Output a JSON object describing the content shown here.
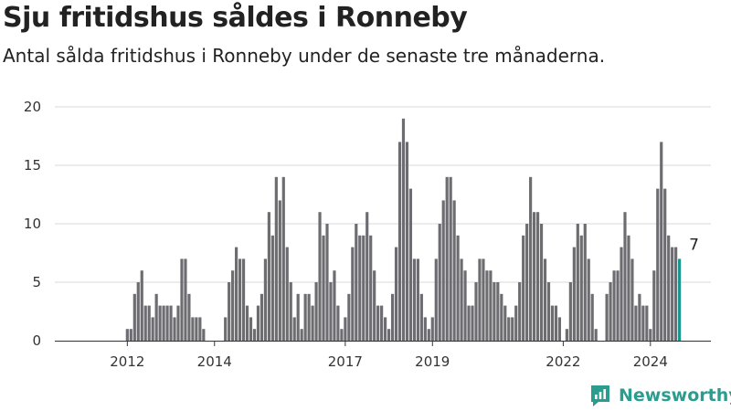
{
  "header": {
    "title": "Sju fritidshus såldes i Ronneby",
    "subtitle": "Antal sålda fritidshus i Ronneby under de senaste tre månaderna."
  },
  "brand": {
    "name": "Newsworthy",
    "logo": "newsworthy-chart-icon",
    "color": "#2a9d8f"
  },
  "colors": {
    "bar": "#6d6c71",
    "highlight": "#1a968f",
    "grid": "#d9d9d9"
  },
  "chart_data": {
    "type": "bar",
    "title": "Sju fritidshus såldes i Ronneby",
    "subtitle": "Antal sålda fritidshus i Ronneby under de senaste tre månaderna.",
    "xlabel": "",
    "ylabel": "",
    "ylim": [
      0,
      20
    ],
    "yticks": [
      0,
      5,
      10,
      15,
      20
    ],
    "xticks": [
      {
        "label": "2012",
        "year": 2012
      },
      {
        "label": "2014",
        "year": 2014
      },
      {
        "label": "2017",
        "year": 2017
      },
      {
        "label": "2019",
        "year": 2019
      },
      {
        "label": "2022",
        "year": 2022
      },
      {
        "label": "2024",
        "year": 2024
      }
    ],
    "grid": true,
    "legend": "none",
    "start": "2011-03",
    "end": "2025-01",
    "annotation": {
      "label": "7",
      "value": 7,
      "month": "2025-01"
    },
    "values": [
      0,
      0,
      0,
      0,
      0,
      0,
      0,
      0,
      0,
      0,
      1,
      1,
      4,
      5,
      6,
      3,
      3,
      2,
      4,
      3,
      3,
      3,
      3,
      2,
      3,
      7,
      7,
      4,
      2,
      2,
      2,
      1,
      0,
      0,
      0,
      0,
      0,
      2,
      5,
      6,
      8,
      7,
      7,
      3,
      2,
      1,
      3,
      4,
      7,
      11,
      9,
      14,
      12,
      14,
      8,
      5,
      2,
      4,
      1,
      4,
      4,
      3,
      5,
      11,
      9,
      10,
      5,
      6,
      3,
      1,
      2,
      4,
      8,
      10,
      9,
      9,
      11,
      9,
      6,
      3,
      3,
      2,
      1,
      4,
      8,
      17,
      19,
      17,
      13,
      7,
      7,
      4,
      2,
      1,
      2,
      7,
      10,
      12,
      14,
      14,
      12,
      9,
      7,
      6,
      3,
      3,
      5,
      7,
      7,
      6,
      6,
      5,
      5,
      4,
      3,
      2,
      2,
      3,
      5,
      9,
      10,
      14,
      11,
      11,
      10,
      7,
      5,
      3,
      3,
      2,
      0,
      1,
      5,
      8,
      10,
      9,
      10,
      7,
      4,
      1,
      0,
      0,
      4,
      5,
      6,
      6,
      8,
      11,
      9,
      7,
      3,
      4,
      3,
      3,
      1,
      6,
      13,
      17,
      13,
      9,
      8,
      8,
      7
    ]
  }
}
